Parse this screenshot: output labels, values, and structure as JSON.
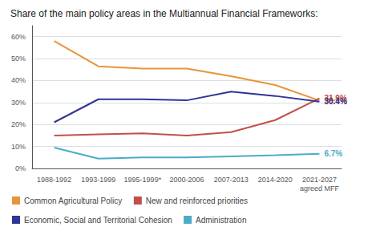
{
  "chart_data": {
    "type": "line",
    "title": "Share of the main policy areas in the Multiannual Financial Frameworks:",
    "categories": [
      "1988-1992",
      "1993-1999",
      "1995-1999*",
      "2000-2006",
      "2007-2013",
      "2014-2020",
      "2021-2027\nagreed MFF"
    ],
    "series": [
      {
        "name": "Common Agricultural Policy",
        "color": "#E8943A",
        "values": [
          58,
          46.5,
          45.5,
          45.5,
          42,
          38,
          30.9
        ],
        "value_labels": [
          null,
          null,
          null,
          null,
          null,
          null,
          "30.9%"
        ]
      },
      {
        "name": "New and reinforced priorities",
        "color": "#C0504D",
        "values": [
          15,
          15.5,
          16,
          15,
          16.5,
          22,
          31.9
        ],
        "value_labels": [
          null,
          null,
          null,
          null,
          null,
          null,
          "31.9%"
        ]
      },
      {
        "name": "Economic, Social and Territorial Cohesion",
        "color": "#2F3496",
        "values": [
          21,
          31.5,
          31.5,
          31,
          35,
          33,
          30.4
        ],
        "value_labels": [
          null,
          null,
          null,
          null,
          null,
          null,
          "30.4%"
        ]
      },
      {
        "name": "Administration",
        "color": "#4BACC6",
        "values": [
          9.5,
          4.5,
          5,
          5,
          5.5,
          6,
          6.7
        ],
        "value_labels": [
          null,
          null,
          null,
          null,
          null,
          null,
          "6.7%"
        ]
      }
    ],
    "ylim": [
      0,
      65
    ],
    "yticks": [
      {
        "value": 0,
        "label": "0%"
      },
      {
        "value": 10,
        "label": "10%"
      },
      {
        "value": 20,
        "label": "20%"
      },
      {
        "value": 30,
        "label": "30%"
      },
      {
        "value": 40,
        "label": "40%"
      },
      {
        "value": 50,
        "label": "50%"
      },
      {
        "value": 60,
        "label": "60%"
      }
    ],
    "grid": true,
    "legend": "bottom"
  }
}
